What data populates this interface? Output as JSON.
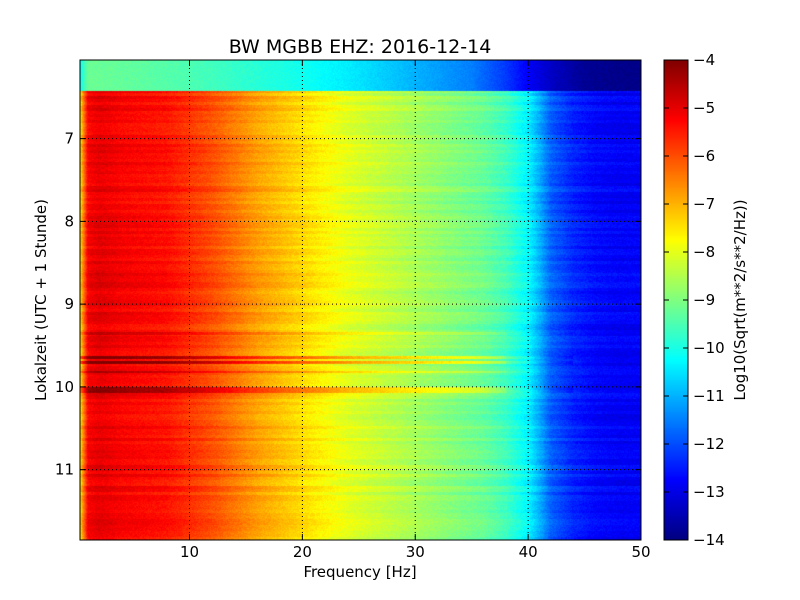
{
  "chart_data": {
    "type": "heatmap",
    "title": "BW MGBB EHZ: 2016-12-14",
    "xlabel": "Frequency [Hz]",
    "ylabel": "Lokalzeit (UTC + 1 Stunde)",
    "xlim": [
      0.3,
      50
    ],
    "ylim": [
      11.85,
      6.05
    ],
    "y_inverted": true,
    "x_ticks": [
      10,
      20,
      30,
      40,
      50
    ],
    "y_ticks": [
      7,
      8,
      9,
      10,
      11
    ],
    "grid": true,
    "colormap": "jet",
    "colorbar": {
      "label": "Log10(Sqrt(m**2/s**2/Hz))",
      "range": [
        -14,
        -4
      ],
      "ticks": [
        -4,
        -5,
        -6,
        -7,
        -8,
        -9,
        -10,
        -11,
        -12,
        -13,
        -14
      ]
    },
    "spectral_profile": {
      "frequency_hz": [
        0.3,
        1,
        2,
        4,
        6,
        8,
        10,
        12,
        14,
        16,
        18,
        20,
        22,
        24,
        26,
        28,
        30,
        32,
        34,
        36,
        38,
        40,
        41,
        42,
        44,
        46,
        48,
        50
      ],
      "log_value": [
        -7.5,
        -5.2,
        -5.0,
        -5.2,
        -5.3,
        -5.4,
        -5.7,
        -6.0,
        -6.4,
        -6.8,
        -7.1,
        -7.4,
        -7.7,
        -8.0,
        -8.2,
        -8.4,
        -8.6,
        -8.8,
        -9.0,
        -9.2,
        -9.6,
        -10.3,
        -11.0,
        -11.8,
        -12.4,
        -12.7,
        -12.8,
        -12.8
      ]
    },
    "first_row": {
      "time_range": [
        6.05,
        6.42
      ],
      "frequency_hz": [
        0.3,
        1,
        5,
        10,
        15,
        20,
        25,
        30,
        35,
        38,
        40,
        42,
        45,
        48,
        50
      ],
      "log_value": [
        -10.2,
        -9.2,
        -9.3,
        -9.5,
        -9.8,
        -10.1,
        -10.5,
        -11.0,
        -11.5,
        -12.2,
        -12.8,
        -13.3,
        -13.8,
        -13.9,
        -13.9
      ]
    },
    "bands": [
      {
        "time": 9.35,
        "delta": 0.5
      },
      {
        "time": 9.65,
        "delta": 1.2
      },
      {
        "time": 9.7,
        "delta": 1.3
      },
      {
        "time": 9.82,
        "delta": 0.6
      },
      {
        "time": 10.02,
        "delta": 1.1
      },
      {
        "time": 10.05,
        "delta": 1.0
      }
    ]
  }
}
